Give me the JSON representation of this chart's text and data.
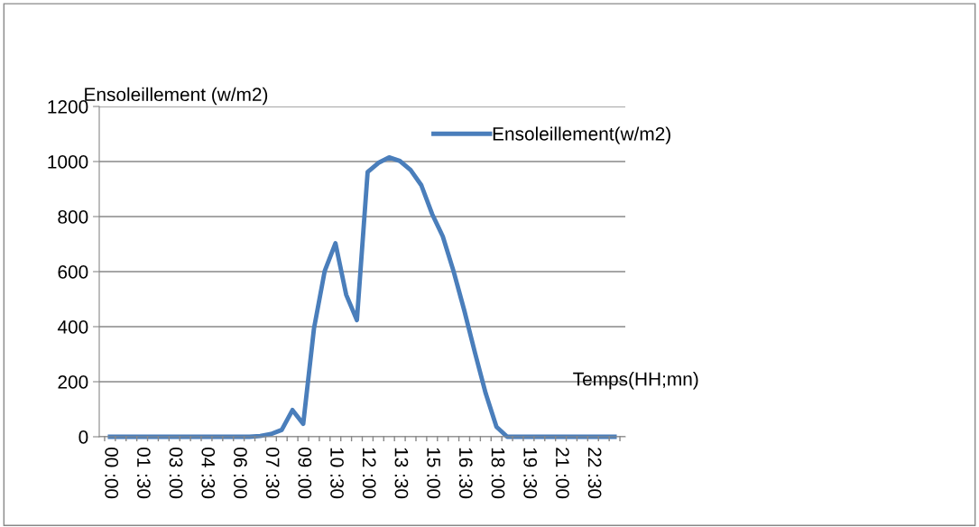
{
  "chart_data": {
    "type": "line",
    "xlabel": "Temps(HH;mn)",
    "ylabel": "Ensoleillement (w/m2)",
    "categories": [
      "00 :00",
      null,
      null,
      "01 :30",
      null,
      null,
      "03 :00",
      null,
      null,
      "04 :30",
      null,
      null,
      "06 :00",
      null,
      null,
      "07 :30",
      null,
      null,
      "09 :00",
      null,
      null,
      "10 :30",
      null,
      null,
      "12 :00",
      null,
      null,
      "13 :30",
      null,
      null,
      "15 :00",
      null,
      null,
      "16 :30",
      null,
      null,
      "18 :00",
      null,
      null,
      "19 :30",
      null,
      null,
      "21 :00",
      null,
      null,
      "22 :30",
      null,
      null
    ],
    "series": [
      {
        "name": "Ensoleillement(w/m2)",
        "color": "#4a7ebb",
        "values": [
          0,
          0,
          0,
          0,
          0,
          0,
          0,
          0,
          0,
          0,
          0,
          0,
          0,
          0,
          3,
          10,
          25,
          97,
          47,
          393,
          602,
          703,
          516,
          424,
          962,
          995,
          1015,
          1002,
          969,
          914,
          810,
          728,
          602,
          459,
          305,
          157,
          36,
          0,
          0,
          0,
          0,
          0,
          0,
          0,
          0,
          0,
          0,
          0
        ]
      }
    ],
    "ylim": [
      0,
      1200
    ],
    "yticks": [
      0,
      200,
      400,
      600,
      800,
      1000,
      1200
    ],
    "grid": "y",
    "legend": "top right",
    "marker": "none",
    "line_style": "solid"
  }
}
